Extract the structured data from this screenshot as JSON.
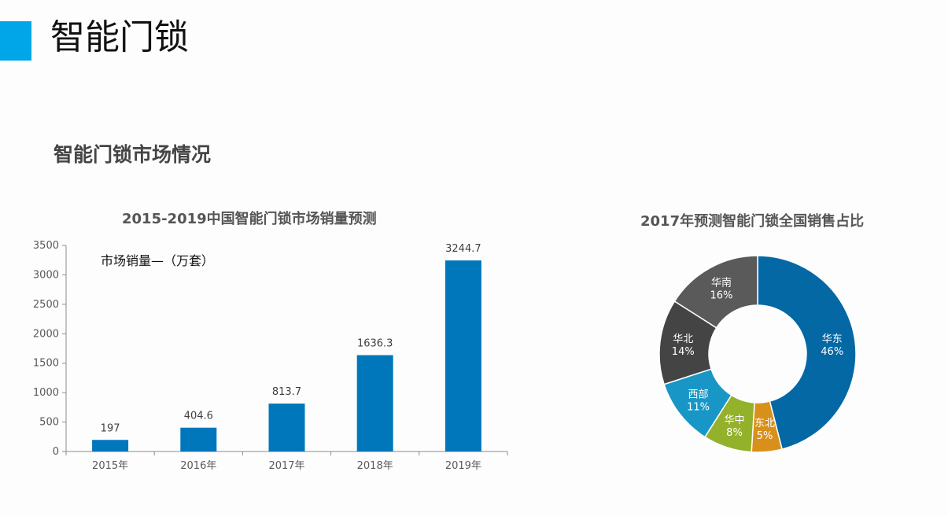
{
  "page": {
    "title": "智能门锁",
    "accent_color": "#00a6e8"
  },
  "section": {
    "title": "智能门锁市场情况"
  },
  "chart_data": [
    {
      "type": "bar",
      "title": "2015-2019中国智能门锁市场销量预测",
      "series_label": "市场销量—（万套）",
      "categories": [
        "2015年",
        "2016年",
        "2017年",
        "2018年",
        "2019年"
      ],
      "values": [
        197,
        404.6,
        813.7,
        1636.3,
        3244.7
      ],
      "value_labels": [
        "197",
        "404.6",
        "813.7",
        "1636.3",
        "3244.7"
      ],
      "ylim": [
        0,
        3500
      ],
      "yticks": [
        0,
        500,
        1000,
        1500,
        2000,
        2500,
        3000,
        3500
      ],
      "grid": false,
      "color": "#0177bb"
    },
    {
      "type": "pie",
      "style": "donut",
      "title": "2017年预测智能门锁全国销售占比",
      "slices": [
        {
          "name": "华东",
          "value": 46,
          "label": "46%",
          "color": "#0468a5"
        },
        {
          "name": "东北",
          "value": 5,
          "label": "5%",
          "color": "#d9901b"
        },
        {
          "name": "华中",
          "value": 8,
          "label": "8%",
          "color": "#94b12b"
        },
        {
          "name": "西部",
          "value": 11,
          "label": "11%",
          "color": "#1897c6"
        },
        {
          "name": "华北",
          "value": 14,
          "label": "14%",
          "color": "#444444"
        },
        {
          "name": "华南",
          "value": 16,
          "label": "16%",
          "color": "#5a5a5a"
        }
      ]
    }
  ]
}
